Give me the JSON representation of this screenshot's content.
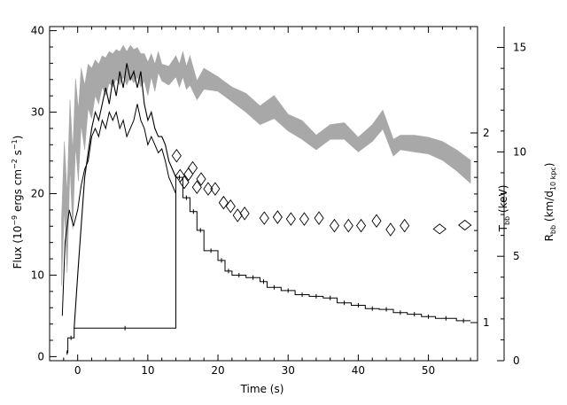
{
  "chart_data": {
    "type": "line",
    "xlabel": "Time (s)",
    "ylabel_left": {
      "main": "Flux (10",
      "sup1": "−9",
      "mid": " ergs cm",
      "sup2": "−2",
      "mid2": " s",
      "sup3": "−1",
      "end": ")"
    },
    "ylabel_right1": {
      "main": "T",
      "sub": "bb",
      "end": " (keV)"
    },
    "ylabel_right2": {
      "main": "R",
      "sub": "bb",
      "mid": " (km/d",
      "sub2": "10 kpc",
      "end": ")"
    },
    "xlim": [
      -4,
      57
    ],
    "ylim_left": [
      -0.5,
      40.5
    ],
    "ylim_temp": [
      0.87,
      2.95
    ],
    "yscale_temp": "log",
    "ylim_radius": [
      0,
      16
    ],
    "x_ticks": [
      "0",
      "10",
      "20",
      "30",
      "40",
      "50"
    ],
    "y_left_ticks": [
      "0",
      "10",
      "20",
      "30",
      "40"
    ],
    "y_temp_ticks": [
      "1",
      "2"
    ],
    "y_radius_ticks": [
      "0",
      "5",
      "10",
      "15"
    ],
    "flux_steps": [
      {
        "x": -1.6,
        "y": 0.5
      },
      {
        "x": -1.4,
        "y": 2.3
      },
      {
        "x": -0.5,
        "y": 3.5
      },
      {
        "x": 14,
        "y": 22
      },
      {
        "x": 15,
        "y": 19.5
      },
      {
        "x": 16,
        "y": 17.8
      },
      {
        "x": 17,
        "y": 15.5
      },
      {
        "x": 18,
        "y": 13
      },
      {
        "x": 20,
        "y": 11.8
      },
      {
        "x": 21,
        "y": 10.5
      },
      {
        "x": 22,
        "y": 10
      },
      {
        "x": 24,
        "y": 9.7
      },
      {
        "x": 26,
        "y": 9.2
      },
      {
        "x": 27,
        "y": 8.5
      },
      {
        "x": 29,
        "y": 8.1
      },
      {
        "x": 31,
        "y": 7.6
      },
      {
        "x": 33,
        "y": 7.4
      },
      {
        "x": 35,
        "y": 7.2
      },
      {
        "x": 37,
        "y": 6.6
      },
      {
        "x": 39,
        "y": 6.3
      },
      {
        "x": 41,
        "y": 5.9
      },
      {
        "x": 43,
        "y": 5.8
      },
      {
        "x": 45,
        "y": 5.4
      },
      {
        "x": 47,
        "y": 5.2
      },
      {
        "x": 49,
        "y": 4.9
      },
      {
        "x": 51,
        "y": 4.7
      },
      {
        "x": 54,
        "y": 4.4
      },
      {
        "x": 56,
        "y": 4.4
      }
    ],
    "flux_fine": [
      [
        -0.5,
        3.5
      ],
      [
        0,
        10
      ],
      [
        0.5,
        16
      ],
      [
        1,
        22
      ],
      [
        1.5,
        25
      ],
      [
        2,
        28
      ],
      [
        2.5,
        30
      ],
      [
        3,
        29
      ],
      [
        3.5,
        31
      ],
      [
        4,
        33
      ],
      [
        4.5,
        31
      ],
      [
        5,
        34
      ],
      [
        5.5,
        32
      ],
      [
        6,
        35
      ],
      [
        6.5,
        33
      ],
      [
        7,
        36
      ],
      [
        7.5,
        34
      ],
      [
        8,
        35
      ],
      [
        8.5,
        33
      ],
      [
        9,
        35
      ],
      [
        9.5,
        31
      ],
      [
        10,
        29
      ],
      [
        10.5,
        30
      ],
      [
        11,
        28
      ],
      [
        11.5,
        27
      ],
      [
        12,
        27
      ],
      [
        12.5,
        26
      ],
      [
        13,
        24
      ],
      [
        13.5,
        23
      ],
      [
        14,
        22
      ]
    ],
    "flux_fine_secondary": [
      [
        -2.2,
        5
      ],
      [
        -1.8,
        14
      ],
      [
        -1.2,
        18
      ],
      [
        -0.6,
        16
      ],
      [
        0,
        18
      ],
      [
        0.5,
        21
      ],
      [
        1,
        23
      ],
      [
        1.5,
        24
      ],
      [
        2,
        27
      ],
      [
        2.5,
        28
      ],
      [
        3,
        27
      ],
      [
        3.5,
        29
      ],
      [
        4,
        28
      ],
      [
        4.5,
        30
      ],
      [
        5,
        29
      ],
      [
        5.5,
        30
      ],
      [
        6,
        28
      ],
      [
        6.5,
        29
      ],
      [
        7,
        27
      ],
      [
        7.5,
        28
      ],
      [
        8,
        29
      ],
      [
        8.5,
        31
      ],
      [
        9,
        29
      ],
      [
        9.5,
        28
      ],
      [
        10,
        26
      ],
      [
        10.5,
        27
      ],
      [
        11,
        26
      ],
      [
        11.5,
        25
      ],
      [
        12,
        25.5
      ],
      [
        12.5,
        24
      ],
      [
        13,
        22
      ],
      [
        13.5,
        21
      ],
      [
        14,
        20
      ]
    ],
    "temperature_kev": [
      {
        "x": 14.1,
        "y": 1.84
      },
      {
        "x": 14.6,
        "y": 1.71
      },
      {
        "x": 15.2,
        "y": 1.67
      },
      {
        "x": 15.8,
        "y": 1.72
      },
      {
        "x": 16.4,
        "y": 1.76
      },
      {
        "x": 17.0,
        "y": 1.64
      },
      {
        "x": 17.6,
        "y": 1.69
      },
      {
        "x": 18.6,
        "y": 1.63
      },
      {
        "x": 19.6,
        "y": 1.63
      },
      {
        "x": 20.8,
        "y": 1.55
      },
      {
        "x": 21.8,
        "y": 1.53
      },
      {
        "x": 22.8,
        "y": 1.48
      },
      {
        "x": 23.8,
        "y": 1.49
      },
      {
        "x": 26.6,
        "y": 1.465
      },
      {
        "x": 28.5,
        "y": 1.47
      },
      {
        "x": 30.4,
        "y": 1.46
      },
      {
        "x": 32.3,
        "y": 1.46
      },
      {
        "x": 34.4,
        "y": 1.465
      },
      {
        "x": 36.6,
        "y": 1.425
      },
      {
        "x": 38.6,
        "y": 1.425
      },
      {
        "x": 40.4,
        "y": 1.425
      },
      {
        "x": 42.6,
        "y": 1.45
      },
      {
        "x": 44.6,
        "y": 1.405
      },
      {
        "x": 46.6,
        "y": 1.425
      },
      {
        "x": 51.6,
        "y": 1.408
      },
      {
        "x": 55.2,
        "y": 1.428
      }
    ],
    "radius_band": [
      [
        -2.3,
        3.6,
        6.8
      ],
      [
        -1.9,
        7.3,
        10.5
      ],
      [
        -1.5,
        4.2,
        8.0
      ],
      [
        -1.1,
        9.3,
        12.5
      ],
      [
        -0.7,
        6.3,
        10.0
      ],
      [
        -0.3,
        10.3,
        13.5
      ],
      [
        0.1,
        8.6,
        12.0
      ],
      [
        0.5,
        11.3,
        14.0
      ],
      [
        1,
        10.1,
        13.2
      ],
      [
        1.5,
        12.1,
        14.2
      ],
      [
        2,
        11.6,
        14.0
      ],
      [
        2.5,
        12.7,
        14.4
      ],
      [
        3,
        12.3,
        14.2
      ],
      [
        3.5,
        13.1,
        14.6
      ],
      [
        4,
        12.7,
        14.5
      ],
      [
        4.5,
        13.3,
        14.8
      ],
      [
        5,
        13.1,
        14.7
      ],
      [
        5.5,
        13.5,
        14.9
      ],
      [
        6,
        13.2,
        14.8
      ],
      [
        6.5,
        13.6,
        15.1
      ],
      [
        7,
        13.2,
        14.8
      ],
      [
        7.5,
        13.6,
        15.1
      ],
      [
        8,
        13.3,
        14.9
      ],
      [
        8.5,
        13.6,
        15.0
      ],
      [
        9,
        13.1,
        14.7
      ],
      [
        9.5,
        13.4,
        14.7
      ],
      [
        10,
        12.7,
        14.3
      ],
      [
        10.5,
        13.6,
        14.7
      ],
      [
        11,
        12.9,
        14.2
      ],
      [
        11.5,
        13.8,
        14.8
      ],
      [
        12,
        13.4,
        14.2
      ],
      [
        13,
        13.2,
        14.1
      ],
      [
        14,
        13.6,
        14.6
      ],
      [
        14.5,
        13.1,
        14.2
      ],
      [
        15,
        13.6,
        14.8
      ],
      [
        15.5,
        13.0,
        14.1
      ],
      [
        16,
        13.2,
        14.6
      ],
      [
        17,
        12.5,
        13.4
      ],
      [
        18,
        13.0,
        14.0
      ],
      [
        20,
        12.9,
        13.6
      ],
      [
        22,
        12.4,
        13.1
      ],
      [
        24,
        11.9,
        12.8
      ],
      [
        26,
        11.3,
        12.2
      ],
      [
        28,
        11.6,
        12.7
      ],
      [
        30,
        11.0,
        11.8
      ],
      [
        32,
        10.6,
        11.5
      ],
      [
        34,
        10.1,
        10.8
      ],
      [
        36,
        10.6,
        11.3
      ],
      [
        38,
        10.6,
        11.4
      ],
      [
        40,
        10.0,
        10.7
      ],
      [
        42,
        10.5,
        11.3
      ],
      [
        43.5,
        11.1,
        12.0
      ],
      [
        45,
        9.8,
        10.6
      ],
      [
        46,
        10.1,
        10.8
      ],
      [
        48,
        10.0,
        10.8
      ],
      [
        50,
        9.9,
        10.7
      ],
      [
        52,
        9.6,
        10.5
      ],
      [
        54,
        9.1,
        10.1
      ],
      [
        56,
        8.5,
        9.6
      ]
    ],
    "grid": false,
    "legend": "none"
  }
}
